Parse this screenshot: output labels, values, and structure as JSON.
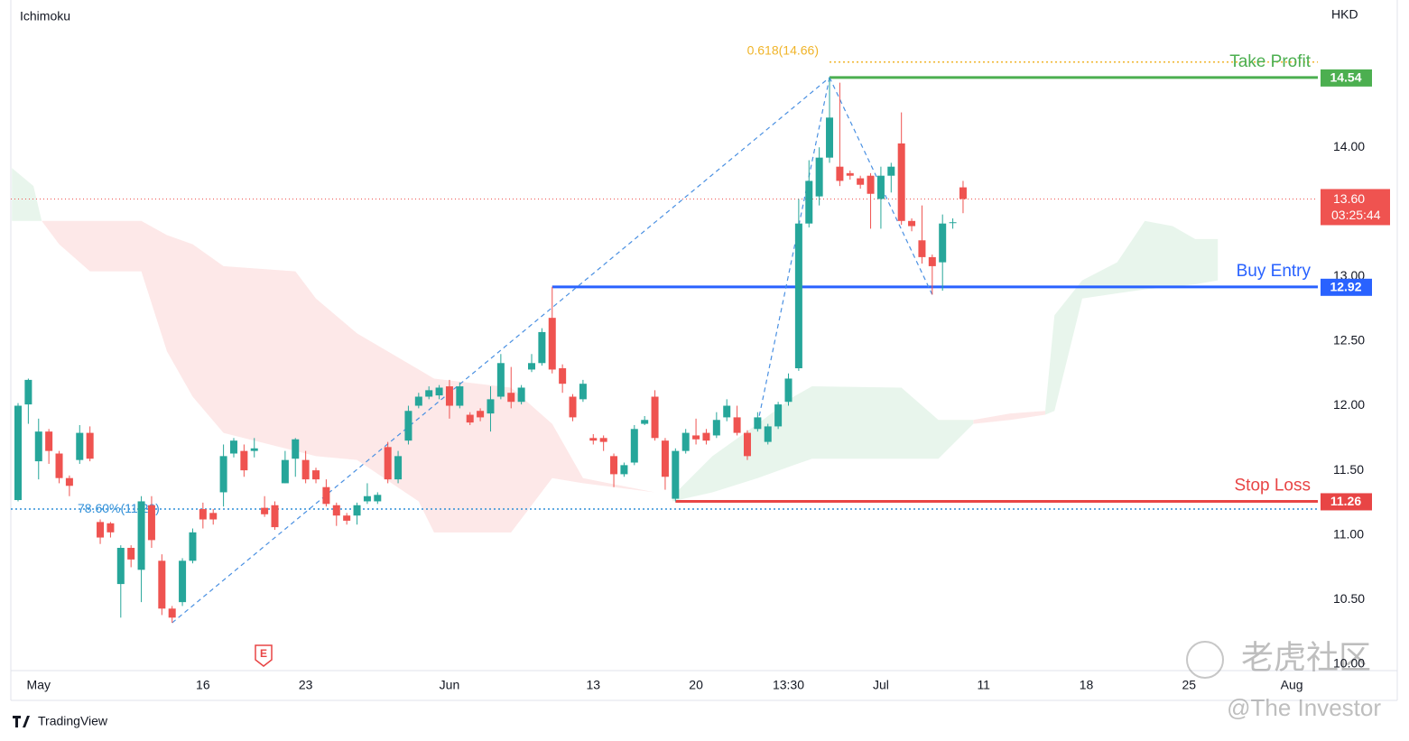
{
  "chart_data": {
    "type": "candlestick",
    "title": "Ichimoku",
    "currency": "HKD",
    "up_color": "#26a69a",
    "down_color": "#ef5350",
    "categories": [
      null,
      null,
      "May",
      null,
      null,
      null,
      null,
      null,
      null,
      null,
      null,
      null,
      null,
      null,
      null,
      null,
      null,
      null,
      "16",
      null,
      null,
      null,
      null,
      null,
      null,
      null,
      null,
      null,
      "23",
      null,
      null,
      null,
      null,
      null,
      null,
      null,
      null,
      null,
      null,
      null,
      null,
      null,
      "Jun",
      null,
      null,
      null,
      null,
      null,
      null,
      null,
      null,
      null,
      null,
      null,
      null,
      null,
      "13",
      null,
      null,
      null,
      null,
      null,
      null,
      null,
      null,
      null,
      "20",
      null,
      null,
      null,
      null,
      null,
      null,
      null,
      null,
      "13:30",
      null,
      null,
      null,
      null,
      null,
      null,
      null,
      null,
      "Jul",
      null,
      null,
      null,
      null,
      null,
      null,
      null,
      null,
      null,
      "11",
      null,
      null,
      null,
      null,
      null,
      null,
      null,
      null,
      null,
      "18",
      null,
      null,
      null,
      null,
      null,
      null,
      null,
      null,
      null,
      "25",
      null,
      null,
      null,
      null,
      null,
      null,
      null,
      null,
      null,
      "Aug"
    ],
    "open": [
      11.27,
      12.01,
      11.57,
      11.8,
      11.63,
      11.44,
      11.58,
      11.79,
      11.1,
      11.09,
      10.62,
      10.9,
      10.73,
      11.23,
      10.8,
      10.43,
      10.48,
      10.8,
      11.2,
      11.17,
      11.33,
      11.63,
      11.65,
      11.65,
      11.21,
      11.23,
      11.4,
      11.59,
      11.58,
      11.5,
      11.37,
      11.23,
      11.15,
      11.15,
      11.26,
      11.26,
      11.68,
      11.43,
      11.73,
      12.0,
      12.07,
      12.08,
      12.15,
      12.0,
      11.93,
      11.96,
      11.94,
      12.07,
      12.1,
      12.03,
      12.28,
      12.33,
      12.68,
      12.29,
      12.07,
      12.05,
      11.75,
      11.75,
      11.61,
      11.47,
      11.56,
      11.86,
      12.07,
      11.73,
      11.28,
      11.65,
      11.77,
      11.79,
      11.77,
      11.91,
      11.91,
      11.79,
      11.82,
      11.72,
      11.84,
      12.03,
      12.29,
      13.41,
      13.62,
      13.92,
      13.85,
      13.8,
      13.76,
      13.78,
      13.6,
      13.78,
      14.03,
      13.43,
      13.28,
      13.15,
      13.11,
      13.42,
      13.69,
      null,
      null,
      null,
      null,
      null,
      null,
      null,
      null,
      null,
      null,
      null,
      null,
      null,
      null,
      null,
      null,
      null,
      null,
      null,
      null,
      null,
      null,
      null,
      null,
      null,
      null,
      null,
      null,
      null,
      null,
      null,
      null
    ],
    "high": [
      12.02,
      12.21,
      11.9,
      11.82,
      11.65,
      11.46,
      11.85,
      11.84,
      11.12,
      11.1,
      10.92,
      10.92,
      11.3,
      11.3,
      10.85,
      10.45,
      10.82,
      11.05,
      11.25,
      11.2,
      11.7,
      11.75,
      11.7,
      11.75,
      11.3,
      11.26,
      11.65,
      11.75,
      11.65,
      11.52,
      11.43,
      11.25,
      11.17,
      11.25,
      11.4,
      11.33,
      11.72,
      11.65,
      12.0,
      12.1,
      12.15,
      12.16,
      12.2,
      12.18,
      11.95,
      11.98,
      12.15,
      12.4,
      12.3,
      12.16,
      12.4,
      12.6,
      12.92,
      12.32,
      12.09,
      12.2,
      11.78,
      11.77,
      11.63,
      11.56,
      11.85,
      11.92,
      12.12,
      11.75,
      11.67,
      11.82,
      11.9,
      11.82,
      11.95,
      12.05,
      12.0,
      11.81,
      11.95,
      11.86,
      12.03,
      12.25,
      13.6,
      13.9,
      14.0,
      14.54,
      14.5,
      13.82,
      13.78,
      13.8,
      13.85,
      13.88,
      14.27,
      13.45,
      13.55,
      13.17,
      13.48,
      13.45,
      13.74,
      null,
      null,
      null,
      null,
      null,
      null,
      null,
      null,
      null,
      null,
      null,
      null,
      null,
      null,
      null,
      null,
      null,
      null,
      null,
      null,
      null,
      null,
      null,
      null,
      null,
      null,
      null,
      null,
      null,
      null,
      null,
      null
    ],
    "low": [
      11.26,
      11.86,
      11.43,
      11.55,
      11.4,
      11.3,
      11.55,
      11.57,
      10.93,
      10.98,
      10.36,
      10.75,
      10.48,
      10.9,
      10.38,
      10.32,
      10.45,
      10.78,
      11.05,
      11.08,
      11.22,
      11.6,
      11.45,
      11.6,
      11.14,
      11.04,
      11.4,
      11.45,
      11.4,
      11.4,
      11.22,
      11.07,
      11.08,
      11.08,
      11.24,
      11.24,
      11.4,
      11.4,
      11.7,
      11.98,
      12.05,
      12.05,
      11.9,
      11.98,
      11.85,
      11.88,
      11.8,
      12.05,
      11.98,
      12.01,
      12.26,
      12.31,
      12.25,
      12.1,
      11.88,
      12.03,
      11.7,
      11.65,
      11.37,
      11.45,
      11.54,
      11.85,
      11.73,
      11.35,
      11.26,
      11.63,
      11.7,
      11.7,
      11.75,
      11.88,
      11.77,
      11.58,
      11.8,
      11.7,
      11.82,
      12.0,
      12.27,
      13.38,
      13.55,
      13.88,
      13.7,
      13.75,
      13.68,
      13.37,
      13.37,
      13.65,
      13.4,
      13.35,
      13.1,
      12.86,
      12.89,
      13.37,
      13.49,
      null,
      null,
      null,
      null,
      null,
      null,
      null,
      null,
      null,
      null,
      null,
      null,
      null,
      null,
      null,
      null,
      null,
      null,
      null,
      null,
      null,
      null,
      null,
      null,
      null,
      null,
      null,
      null,
      null,
      null,
      null,
      null
    ],
    "close": [
      12.0,
      12.2,
      11.8,
      11.65,
      11.44,
      11.38,
      11.79,
      11.59,
      10.98,
      11.02,
      10.9,
      10.81,
      11.26,
      10.96,
      10.43,
      10.36,
      10.8,
      11.02,
      11.12,
      11.12,
      11.61,
      11.73,
      11.5,
      11.67,
      11.16,
      11.06,
      11.58,
      11.74,
      11.43,
      11.43,
      11.24,
      11.15,
      11.11,
      11.23,
      11.3,
      11.31,
      11.43,
      11.61,
      11.96,
      12.07,
      12.12,
      12.14,
      12.0,
      12.15,
      11.87,
      11.91,
      12.05,
      12.33,
      12.03,
      12.14,
      12.33,
      12.57,
      12.28,
      12.17,
      11.91,
      12.17,
      11.73,
      11.72,
      11.47,
      11.54,
      11.82,
      11.89,
      11.75,
      11.45,
      11.65,
      11.79,
      11.74,
      11.73,
      11.89,
      12.0,
      11.79,
      11.61,
      11.91,
      11.84,
      12.01,
      12.21,
      13.41,
      13.74,
      13.92,
      14.23,
      13.74,
      13.78,
      13.71,
      13.64,
      13.78,
      13.85,
      13.43,
      13.39,
      13.15,
      13.08,
      13.41,
      13.42,
      13.6,
      null,
      null,
      null,
      null,
      null,
      null,
      null,
      null,
      null,
      null,
      null,
      null,
      null,
      null,
      null,
      null,
      null,
      null,
      null,
      null,
      null,
      null,
      null,
      null,
      null,
      null,
      null,
      null,
      null,
      null,
      null,
      null
    ],
    "ylim": [
      9.95,
      15.14
    ],
    "yticks": [
      {
        "value": 10,
        "label": "10.00"
      },
      {
        "value": 10.5,
        "label": "10.50"
      },
      {
        "value": 11,
        "label": "11.00"
      },
      {
        "value": 11.5,
        "label": "11.50"
      },
      {
        "value": 12,
        "label": "12.00"
      },
      {
        "value": 12.5,
        "label": "12.50"
      },
      {
        "value": 13,
        "label": "13.00"
      },
      {
        "value": 13.5,
        "label": "13.50"
      },
      {
        "value": 14,
        "label": "14.00"
      }
    ],
    "grid": false,
    "clouds": [
      {
        "color": "#e8f5ec",
        "x": [
          -0.6,
          1.5,
          2.3
        ],
        "upper": [
          13.84,
          13.7,
          13.43
        ],
        "lower": [
          13.43,
          13.43,
          13.43
        ]
      },
      {
        "color": "#fde8e8",
        "x": [
          2.3,
          4,
          7,
          12,
          14.5,
          17,
          20,
          27,
          29,
          33,
          39,
          40.5,
          48,
          52,
          55,
          62
        ],
        "upper": [
          13.43,
          13.43,
          13.43,
          13.43,
          13.32,
          13.25,
          13.08,
          13.04,
          12.83,
          12.56,
          12.28,
          12.21,
          12.14,
          11.86,
          11.44,
          11.33
        ],
        "lower": [
          13.43,
          13.25,
          13.04,
          13.04,
          12.42,
          12.07,
          11.79,
          11.65,
          11.61,
          11.58,
          11.26,
          11.02,
          11.02,
          11.44,
          11.4,
          11.33
        ]
      },
      {
        "color": "#e8f5ec",
        "x": [
          63.7,
          67.6,
          72,
          75.5,
          77.3,
          86,
          89.6,
          93
        ],
        "upper": [
          11.3,
          11.61,
          11.86,
          12.07,
          12.15,
          12.14,
          11.89,
          11.89
        ],
        "lower": [
          11.26,
          11.33,
          11.44,
          11.54,
          11.59,
          11.59,
          11.59,
          11.86
        ]
      },
      {
        "color": "#fde8e8",
        "x": [
          93,
          96.6,
          100
        ],
        "upper": [
          11.89,
          11.94,
          11.96
        ],
        "lower": [
          11.86,
          11.89,
          11.93
        ]
      },
      {
        "color": "#e8f5ec",
        "x": [
          100,
          100.9,
          103.6,
          107,
          109.7,
          112.4,
          114.6,
          116.8
        ],
        "upper": [
          11.96,
          12.7,
          12.97,
          13.11,
          13.43,
          13.39,
          13.29,
          13.29
        ],
        "lower": [
          11.93,
          11.96,
          12.83,
          12.87,
          12.9,
          12.92,
          12.94,
          12.97
        ]
      }
    ],
    "pattern_lines": [
      {
        "x": [
          15,
          79
        ],
        "y": [
          10.32,
          14.54
        ]
      },
      {
        "x": [
          72,
          79
        ],
        "y": [
          11.86,
          14.54
        ]
      },
      {
        "x": [
          79,
          89
        ],
        "y": [
          14.54,
          12.86
        ]
      }
    ],
    "pattern_color": "#4a90e2",
    "levels": [
      {
        "name": "Take Profit",
        "value": 14.54,
        "color": "#4caf50"
      },
      {
        "name": "Buy Entry",
        "value": 12.92,
        "color": "#2962ff"
      },
      {
        "name": "Stop Loss",
        "value": 11.26,
        "color": "#e84545"
      }
    ],
    "fib_levels": [
      {
        "label": "0.618(14.66)",
        "value": 14.66,
        "color": "#f0b429"
      },
      {
        "label": "78.60%(11.20)",
        "value": 11.2,
        "color": "#2f8fd8"
      }
    ],
    "current_price": {
      "value": 13.6,
      "label": "13.60",
      "countdown": "03:25:44",
      "color": "#ef5350"
    },
    "earnings_marker": "E",
    "brand": "TradingView",
    "watermark": {
      "title": "老虎社区",
      "author": "@The Investor"
    }
  }
}
